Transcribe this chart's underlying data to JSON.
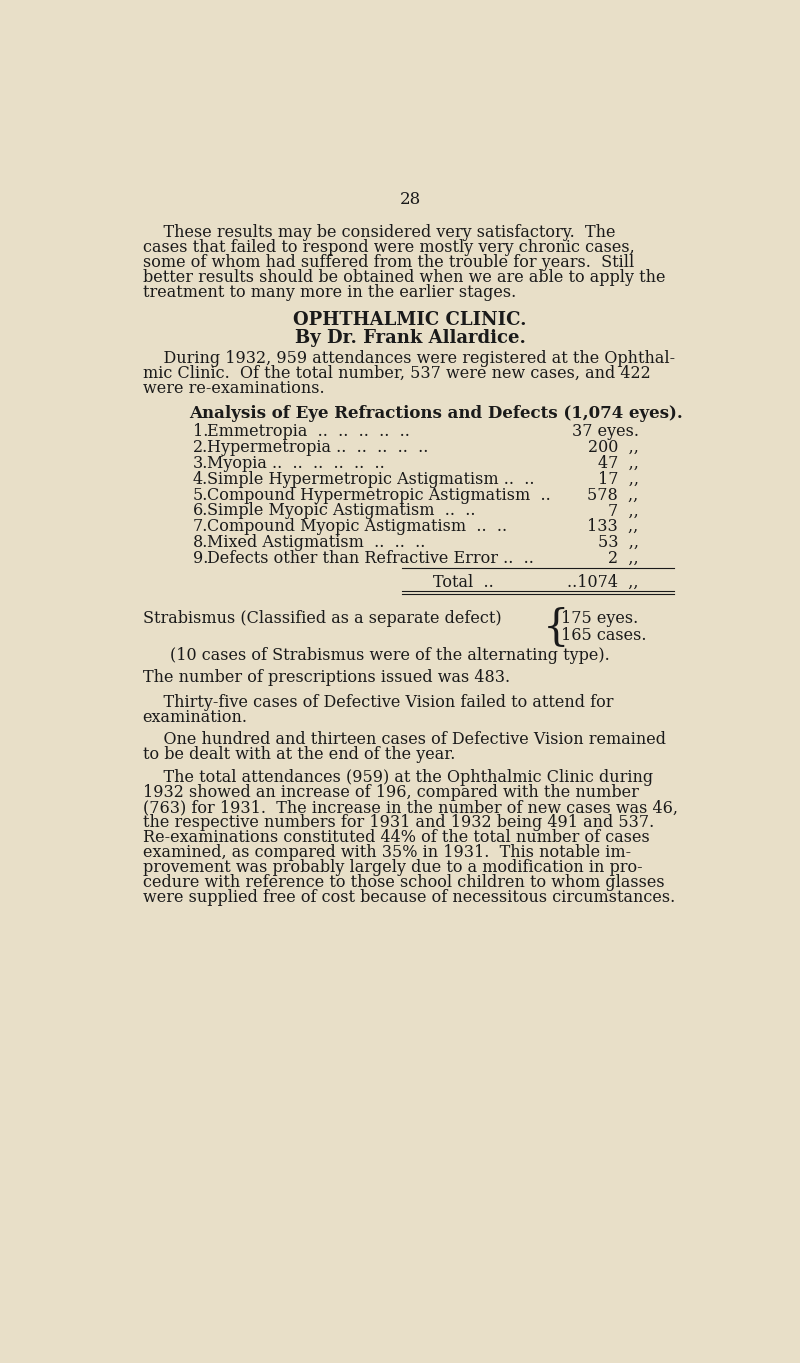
{
  "bg_color": "#e8dfc8",
  "text_color": "#1a1a1a",
  "page_number": "28",
  "section_title1": "OPHTHALMIC CLINIC.",
  "section_title2": "By Dr. Frank Allardice.",
  "table_title": "Analysis of Eye Refractions and Defects (1,074 eyes).",
  "strabismus_label": "Strabismus (Classified as a separate defect)",
  "strabismus_val1": "175 eyes.",
  "strabismus_val2": "165 cases.",
  "strabismus_note": "(10 cases of Strabismus were of the alternating type).",
  "prescriptions_line": "The number of prescriptions issued was 483.",
  "p1_lines": [
    "    These results may be considered very satisfactory.  The",
    "cases that failed to respond were mostly very chronic cases,",
    "some of whom had suffered from the trouble for years.  Still",
    "better results should be obtained when we are able to apply the",
    "treatment to many more in the earlier stages."
  ],
  "p2_lines": [
    "    During 1932, 959 attendances were registered at the Ophthal-",
    "mic Clinic.  Of the total number, 537 were new cases, and 422",
    "were re-examinations."
  ],
  "row_texts": [
    [
      "1.",
      "Emmetropia",
      "  ..  ..  ..  ..  ..",
      "37 eyes."
    ],
    [
      "2.",
      "Hypermetropia ..",
      "  ..  ..  ..  ..",
      "200  ,,"
    ],
    [
      "3.",
      "Myopia ..",
      "  ..  ..  ..  ..  ..",
      "47  ,,"
    ],
    [
      "4.",
      "Simple Hypermetropic Astigmatism ..",
      "  ..",
      "17  ,,"
    ],
    [
      "5.",
      "Compound Hypermetropic Astigmatism",
      "  ..",
      "578  ,,"
    ],
    [
      "6.",
      "Simple Myopic Astigmatism",
      "  ..  ..",
      "7  ,,"
    ],
    [
      "7.",
      "Compound Myopic Astigmatism",
      "  ..  ..",
      "133  ,,"
    ],
    [
      "8.",
      "Mixed Astigmatism",
      "  ..  ..  ..",
      "53  ,,"
    ],
    [
      "9.",
      "Defects other than Refractive Error ..",
      "  ..",
      "2  ,,"
    ]
  ],
  "p3_lines": [
    "    Thirty-five cases of Defective Vision failed to attend for",
    "examination."
  ],
  "p4_lines": [
    "    One hundred and thirteen cases of Defective Vision remained",
    "to be dealt with at the end of the year."
  ],
  "p5_lines": [
    "    The total attendances (959) at the Ophthalmic Clinic during",
    "1932 showed an increase of 196, compared with the number",
    "(763) for 1931.  The increase in the number of new cases was 46,",
    "the respective numbers for 1931 and 1932 being 491 and 537.",
    "Re-examinations constituted 44% of the total number of cases",
    "examined, as compared with 35% in 1931.  This notable im-",
    "provement was probably largely due to a modification in pro-",
    "cedure with reference to those school children to whom glasses",
    "were supplied free of cost because of necessitous circumstances."
  ]
}
